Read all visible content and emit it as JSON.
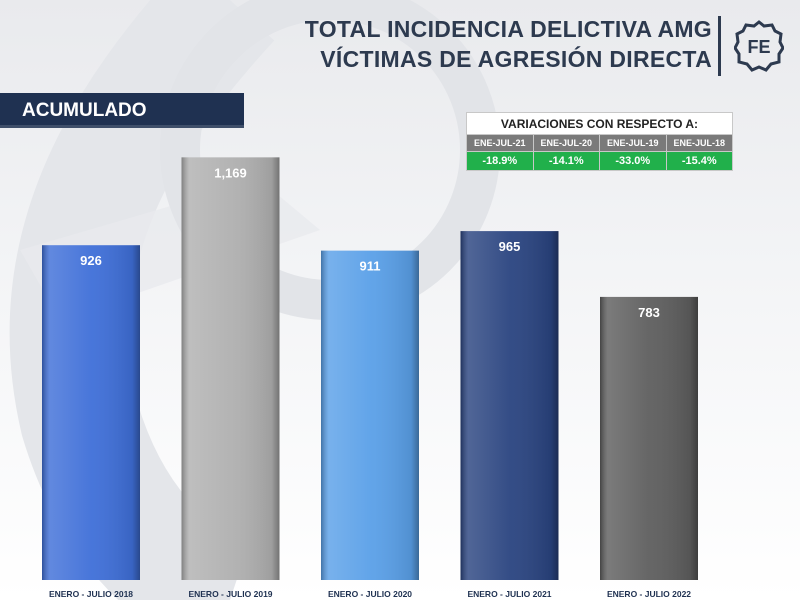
{
  "header": {
    "title_line1": "TOTAL INCIDENCIA DELICTIVA AMG",
    "title_line2": "VÍCTIMAS DE AGRESIÓN DIRECTA",
    "logo_text": "FE"
  },
  "section_label": "ACUMULADO",
  "variations": {
    "heading": "VARIACIONES CON RESPECTO A:",
    "periods": [
      "ENE-JUL-21",
      "ENE-JUL-20",
      "ENE-JUL-19",
      "ENE-JUL-18"
    ],
    "values": [
      "-18.9%",
      "-14.1%",
      "-33.0%",
      "-15.4%"
    ],
    "value_color": "#21b04b"
  },
  "chart_data": {
    "type": "bar",
    "categories": [
      "ENERO - JULIO 2018",
      "ENERO - JULIO 2019",
      "ENERO - JULIO 2020",
      "ENERO - JULIO 2021",
      "ENERO - JULIO 2022"
    ],
    "values": [
      926,
      1169,
      911,
      965,
      783
    ],
    "value_labels": [
      "926",
      "1,169",
      "911",
      "965",
      "783"
    ],
    "bar_colors": [
      "#3f6fd8",
      "#b0b0b0",
      "#5aa0e8",
      "#2a4480",
      "#5e5e5e"
    ],
    "ylim": [
      0,
      1300
    ],
    "grid": false,
    "legend": "none"
  }
}
